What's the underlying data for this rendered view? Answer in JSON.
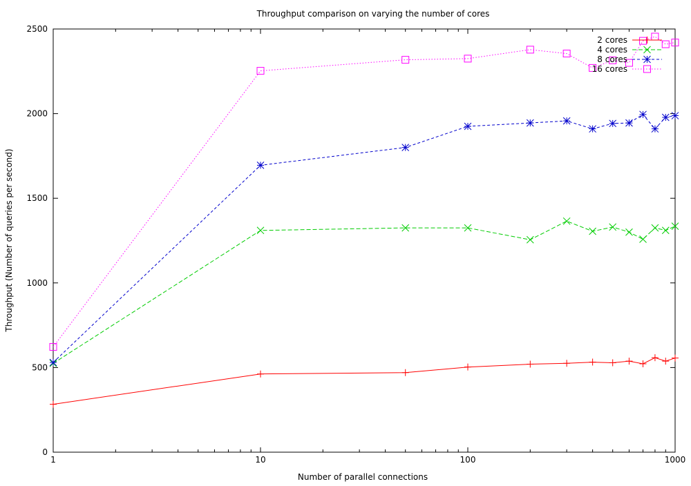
{
  "chart_data": {
    "type": "line",
    "title": "Throughput comparison on varying the number of cores",
    "xlabel": "Number of parallel connections",
    "ylabel": "Throughput (Number of queries per second)",
    "x_scale": "log",
    "xlim": [
      1,
      1000
    ],
    "ylim": [
      0,
      2500
    ],
    "x_ticks": [
      1,
      10,
      100,
      1000
    ],
    "y_ticks": [
      0,
      500,
      1000,
      1500,
      2000,
      2500
    ],
    "grid": false,
    "legend_position": "top-right",
    "series": [
      {
        "name": "2 cores",
        "color": "#ff0000",
        "marker": "plus",
        "dash": "solid",
        "x": [
          1,
          10,
          50,
          100,
          200,
          300,
          400,
          500,
          600,
          700,
          800,
          900,
          1000
        ],
        "values": [
          283,
          462,
          470,
          503,
          520,
          525,
          532,
          528,
          538,
          522,
          558,
          538,
          556
        ]
      },
      {
        "name": "4 cores",
        "color": "#00cc00",
        "marker": "cross",
        "dash": "dashed",
        "x": [
          1,
          10,
          50,
          100,
          200,
          300,
          400,
          500,
          600,
          700,
          800,
          900,
          1000
        ],
        "values": [
          525,
          1310,
          1325,
          1325,
          1255,
          1365,
          1305,
          1330,
          1300,
          1258,
          1325,
          1310,
          1335
        ]
      },
      {
        "name": "8 cores",
        "color": "#0000cc",
        "marker": "star",
        "dash": "dash-short",
        "x": [
          1,
          10,
          50,
          100,
          200,
          300,
          400,
          500,
          600,
          700,
          800,
          900,
          1000
        ],
        "values": [
          530,
          1695,
          1800,
          1925,
          1945,
          1957,
          1910,
          1942,
          1945,
          1995,
          1910,
          1978,
          1988
        ]
      },
      {
        "name": "16 cores",
        "color": "#ff00ff",
        "marker": "square",
        "dash": "dotted",
        "x": [
          1,
          10,
          50,
          100,
          200,
          300,
          400,
          500,
          600,
          700,
          800,
          900,
          1000
        ],
        "values": [
          622,
          2253,
          2318,
          2325,
          2378,
          2355,
          2270,
          2315,
          2300,
          2430,
          2455,
          2410,
          2420
        ]
      }
    ]
  }
}
